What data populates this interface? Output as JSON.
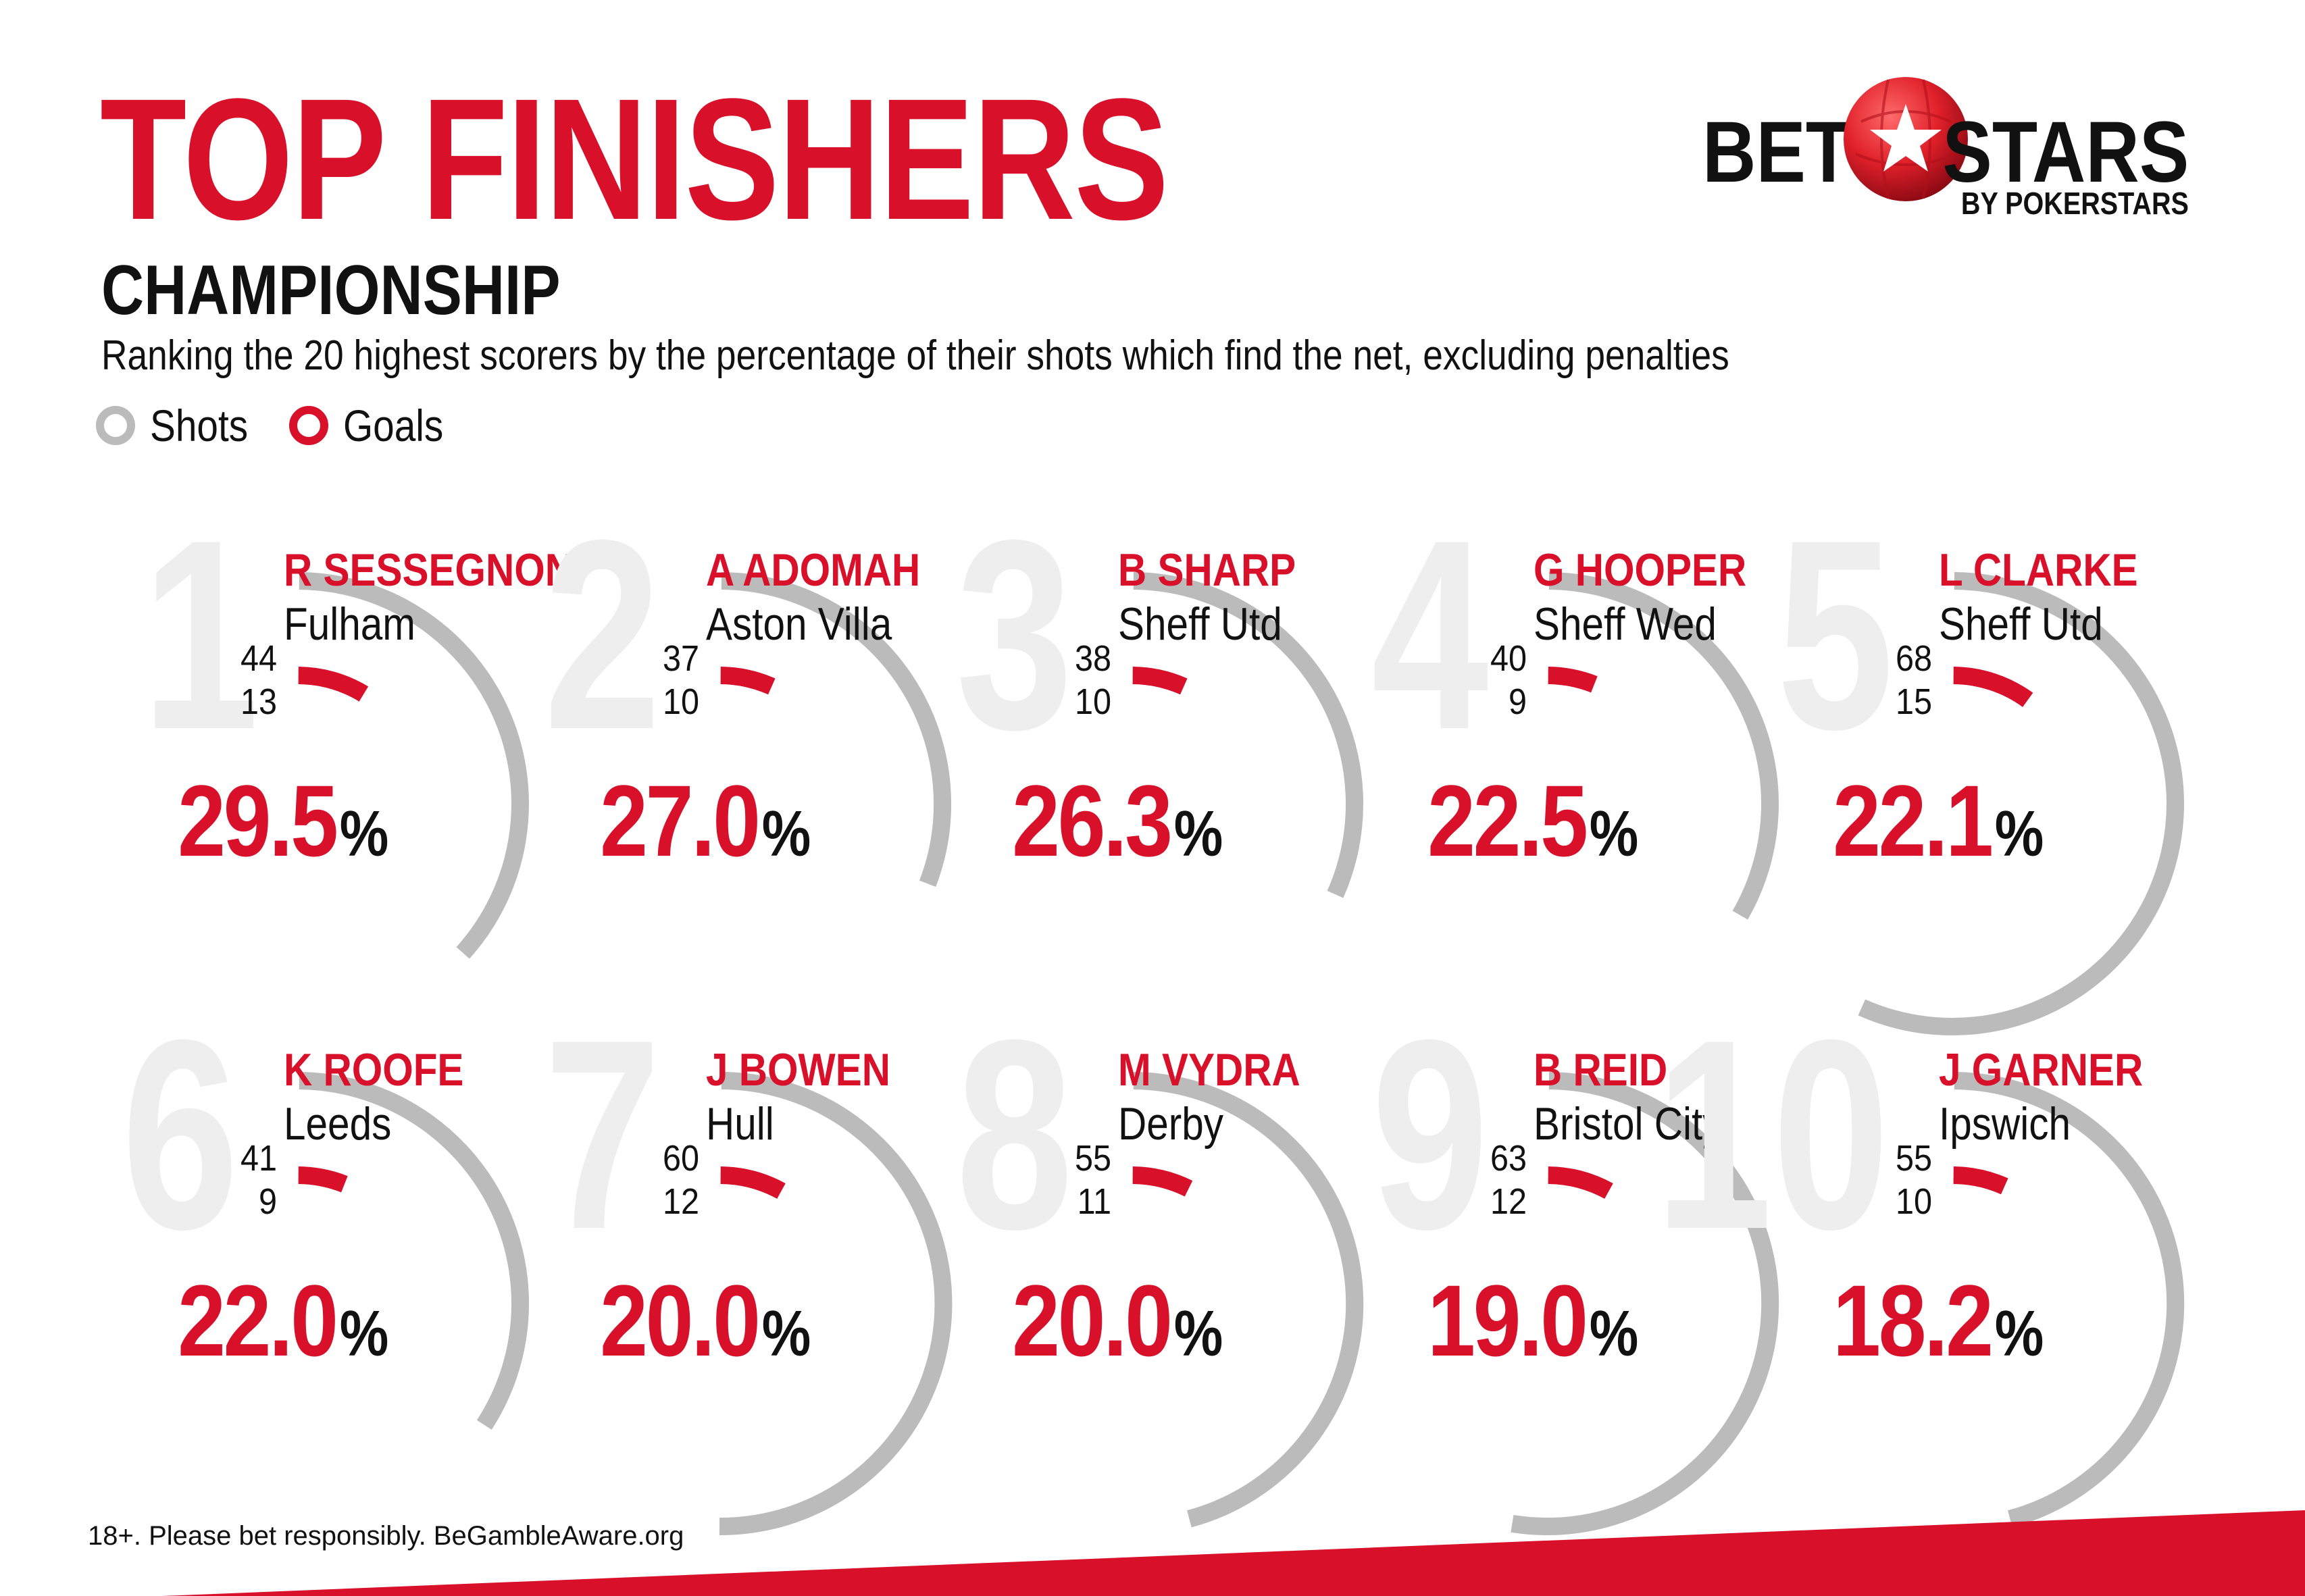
{
  "header": {
    "title": "TOP FINISHERS",
    "subtitle": "CHAMPIONSHIP",
    "description": "Ranking the 20 highest scorers by the percentage of their shots which find the net, excluding penalties"
  },
  "legend": [
    {
      "label": "Shots",
      "color": "#bbbbbb"
    },
    {
      "label": "Goals",
      "color": "#d8102a"
    }
  ],
  "logo": {
    "left_text": "BET",
    "right_text": "STARS",
    "sub_text": "BY POKERSTARS"
  },
  "colors": {
    "accent": "#d8102a",
    "shots_arc": "#bbbbbb",
    "rank_numeral": "#eeeeee",
    "text": "#111111"
  },
  "chart_data": {
    "type": "gauge",
    "note_type": "radial arc gauges per player",
    "percent_symbol": "%",
    "players": [
      {
        "rank": "1",
        "name": "R SESSEGNON",
        "club": "Fulham",
        "shots": 44,
        "goals": 13,
        "percentage": "29.5"
      },
      {
        "rank": "2",
        "name": "A ADOMAH",
        "club": "Aston Villa",
        "shots": 37,
        "goals": 10,
        "percentage": "27.0"
      },
      {
        "rank": "3",
        "name": "B SHARP",
        "club": "Sheff Utd",
        "shots": 38,
        "goals": 10,
        "percentage": "26.3"
      },
      {
        "rank": "4",
        "name": "G HOOPER",
        "club": "Sheff Wed",
        "shots": 40,
        "goals": 9,
        "percentage": "22.5"
      },
      {
        "rank": "5",
        "name": "L CLARKE",
        "club": "Sheff Utd",
        "shots": 68,
        "goals": 15,
        "percentage": "22.1"
      },
      {
        "rank": "6",
        "name": "K ROOFE",
        "club": "Leeds",
        "shots": 41,
        "goals": 9,
        "percentage": "22.0"
      },
      {
        "rank": "7",
        "name": "J BOWEN",
        "club": "Hull",
        "shots": 60,
        "goals": 12,
        "percentage": "20.0"
      },
      {
        "rank": "8",
        "name": "M VYDRA",
        "club": "Derby",
        "shots": 55,
        "goals": 11,
        "percentage": "20.0"
      },
      {
        "rank": "9",
        "name": "B REID",
        "club": "Bristol City",
        "shots": 63,
        "goals": 12,
        "percentage": "19.0"
      },
      {
        "rank": "10",
        "name": "J GARNER",
        "club": "Ipswich",
        "shots": 55,
        "goals": 10,
        "percentage": "18.2"
      }
    ]
  },
  "footer": {
    "disclaimer": "18+. Please bet responsibly. BeGambleAware.org"
  }
}
